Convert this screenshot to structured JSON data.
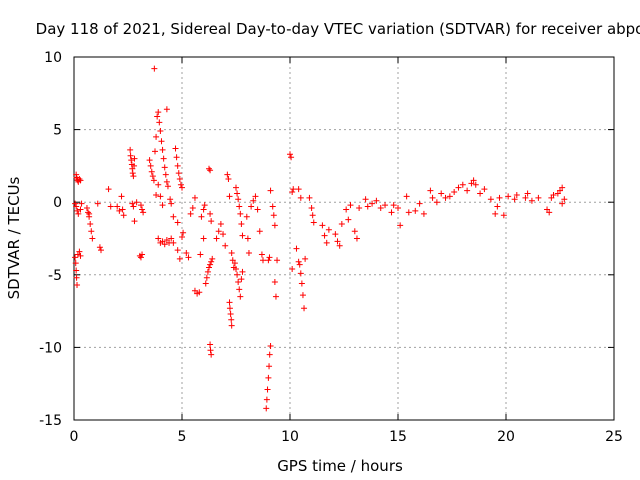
{
  "chart_data": {
    "type": "scatter",
    "title": "Day 118 of 2021, Sidereal Day-to-day VTEC variation (SDTVAR) for receiver abpo",
    "xlabel": "GPS time / hours",
    "ylabel": "SDTVAR / TECUs",
    "xlim": [
      0,
      25
    ],
    "ylim": [
      -15,
      10
    ],
    "xticks": [
      0,
      5,
      10,
      15,
      20,
      25
    ],
    "yticks": [
      -15,
      -10,
      -5,
      0,
      5,
      10
    ],
    "xtick_labels": [
      "0",
      "5",
      "10",
      "15",
      "20",
      "25"
    ],
    "ytick_labels": [
      "-15",
      "-10",
      "-5",
      "0",
      "5",
      "10"
    ],
    "grid": true,
    "marker": "plus",
    "color": "#ff0000",
    "series": [
      {
        "name": "SDTVAR",
        "points": [
          [
            0.1,
            1.9
          ],
          [
            0.12,
            1.7
          ],
          [
            0.14,
            1.6
          ],
          [
            0.17,
            1.5
          ],
          [
            0.2,
            1.4
          ],
          [
            0.25,
            1.6
          ],
          [
            0.3,
            1.5
          ],
          [
            0.05,
            -0.1
          ],
          [
            0.1,
            -0.3
          ],
          [
            0.15,
            -0.6
          ],
          [
            0.2,
            -0.8
          ],
          [
            0.3,
            -0.5
          ],
          [
            0.35,
            -0.1
          ],
          [
            0.05,
            -3.8
          ],
          [
            0.08,
            -4.2
          ],
          [
            0.1,
            -4.7
          ],
          [
            0.12,
            -5.2
          ],
          [
            0.14,
            -5.7
          ],
          [
            0.18,
            -3.6
          ],
          [
            0.25,
            -3.4
          ],
          [
            0.3,
            -3.7
          ],
          [
            0.6,
            -0.4
          ],
          [
            0.65,
            -0.7
          ],
          [
            0.7,
            -1.0
          ],
          [
            0.75,
            -1.5
          ],
          [
            0.8,
            -2.0
          ],
          [
            0.85,
            -2.5
          ],
          [
            0.7,
            -0.8
          ],
          [
            1.1,
            -0.1
          ],
          [
            1.2,
            -3.1
          ],
          [
            1.25,
            -3.3
          ],
          [
            1.6,
            0.9
          ],
          [
            1.7,
            -0.3
          ],
          [
            2.0,
            -0.3
          ],
          [
            2.1,
            -0.6
          ],
          [
            2.2,
            0.4
          ],
          [
            2.25,
            -0.5
          ],
          [
            2.3,
            -0.9
          ],
          [
            2.6,
            3.6
          ],
          [
            2.62,
            3.2
          ],
          [
            2.65,
            2.9
          ],
          [
            2.68,
            2.6
          ],
          [
            2.7,
            2.3
          ],
          [
            2.72,
            2.0
          ],
          [
            2.75,
            1.8
          ],
          [
            2.78,
            2.5
          ],
          [
            2.8,
            3.0
          ],
          [
            2.7,
            -0.1
          ],
          [
            2.75,
            -0.3
          ],
          [
            2.8,
            -1.3
          ],
          [
            2.9,
            0.0
          ],
          [
            3.1,
            -0.2
          ],
          [
            3.15,
            -0.5
          ],
          [
            3.2,
            -0.7
          ],
          [
            3.05,
            -3.7
          ],
          [
            3.1,
            -3.8
          ],
          [
            3.15,
            -3.6
          ],
          [
            3.5,
            2.9
          ],
          [
            3.55,
            2.5
          ],
          [
            3.6,
            2.1
          ],
          [
            3.65,
            1.8
          ],
          [
            3.7,
            1.5
          ],
          [
            3.75,
            3.5
          ],
          [
            3.8,
            4.5
          ],
          [
            3.85,
            5.9
          ],
          [
            3.9,
            6.2
          ],
          [
            3.95,
            5.5
          ],
          [
            4.0,
            4.9
          ],
          [
            4.05,
            4.2
          ],
          [
            4.1,
            3.6
          ],
          [
            4.15,
            3.0
          ],
          [
            4.2,
            2.4
          ],
          [
            4.25,
            1.9
          ],
          [
            4.3,
            1.4
          ],
          [
            4.35,
            1.1
          ],
          [
            3.8,
            0.5
          ],
          [
            3.9,
            1.2
          ],
          [
            4.0,
            0.4
          ],
          [
            4.1,
            -0.2
          ],
          [
            3.72,
            9.2
          ],
          [
            4.3,
            6.4
          ],
          [
            4.45,
            0.2
          ],
          [
            4.5,
            -0.1
          ],
          [
            3.9,
            -2.5
          ],
          [
            4.0,
            -2.8
          ],
          [
            4.1,
            -2.7
          ],
          [
            4.2,
            -2.9
          ],
          [
            4.3,
            -2.6
          ],
          [
            4.4,
            -2.8
          ],
          [
            4.7,
            3.7
          ],
          [
            4.75,
            3.1
          ],
          [
            4.8,
            2.5
          ],
          [
            4.85,
            2.0
          ],
          [
            4.9,
            1.6
          ],
          [
            4.95,
            1.2
          ],
          [
            5.0,
            1.0
          ],
          [
            4.6,
            -1.0
          ],
          [
            4.8,
            -1.4
          ],
          [
            4.5,
            -2.5
          ],
          [
            4.6,
            -2.8
          ],
          [
            4.8,
            -3.3
          ],
          [
            4.9,
            -3.9
          ],
          [
            5.0,
            -2.4
          ],
          [
            5.05,
            -2.1
          ],
          [
            5.2,
            -3.5
          ],
          [
            5.3,
            -3.8
          ],
          [
            5.4,
            -0.8
          ],
          [
            5.5,
            -0.4
          ],
          [
            5.6,
            0.3
          ],
          [
            5.6,
            -6.1
          ],
          [
            5.7,
            -6.3
          ],
          [
            5.8,
            -6.2
          ],
          [
            5.9,
            -1.0
          ],
          [
            6.0,
            -0.5
          ],
          [
            6.05,
            -0.2
          ],
          [
            6.0,
            -2.5
          ],
          [
            5.85,
            -3.6
          ],
          [
            6.1,
            -5.6
          ],
          [
            6.15,
            -5.2
          ],
          [
            6.2,
            -4.8
          ],
          [
            6.25,
            -4.5
          ],
          [
            6.3,
            -4.3
          ],
          [
            6.35,
            -4.1
          ],
          [
            6.4,
            -3.9
          ],
          [
            6.25,
            2.3
          ],
          [
            6.3,
            2.2
          ],
          [
            6.3,
            -0.8
          ],
          [
            6.35,
            -1.3
          ],
          [
            6.3,
            -9.8
          ],
          [
            6.32,
            -10.2
          ],
          [
            6.35,
            -10.5
          ],
          [
            6.6,
            -2.5
          ],
          [
            6.7,
            -2.0
          ],
          [
            6.8,
            -1.5
          ],
          [
            6.9,
            -2.2
          ],
          [
            7.0,
            -3.0
          ],
          [
            7.1,
            1.9
          ],
          [
            7.15,
            1.6
          ],
          [
            7.2,
            0.4
          ],
          [
            7.2,
            -6.9
          ],
          [
            7.22,
            -7.3
          ],
          [
            7.25,
            -7.7
          ],
          [
            7.28,
            -8.1
          ],
          [
            7.3,
            -8.5
          ],
          [
            7.3,
            -3.5
          ],
          [
            7.35,
            -4.0
          ],
          [
            7.4,
            -4.5
          ],
          [
            7.5,
            1.0
          ],
          [
            7.55,
            0.6
          ],
          [
            7.6,
            0.2
          ],
          [
            7.65,
            -0.3
          ],
          [
            7.7,
            -0.8
          ],
          [
            7.75,
            -1.5
          ],
          [
            7.8,
            -2.3
          ],
          [
            7.45,
            -4.2
          ],
          [
            7.5,
            -4.6
          ],
          [
            7.55,
            -5.0
          ],
          [
            7.6,
            -5.5
          ],
          [
            7.65,
            -6.0
          ],
          [
            7.7,
            -6.5
          ],
          [
            7.75,
            -5.3
          ],
          [
            7.8,
            -4.8
          ],
          [
            8.0,
            -1.0
          ],
          [
            8.05,
            -2.5
          ],
          [
            8.1,
            -3.5
          ],
          [
            8.2,
            -0.3
          ],
          [
            8.3,
            0.1
          ],
          [
            8.4,
            0.4
          ],
          [
            8.5,
            -0.5
          ],
          [
            8.6,
            -2.0
          ],
          [
            8.7,
            -3.6
          ],
          [
            8.75,
            -4.0
          ],
          [
            9.0,
            -4.0
          ],
          [
            9.05,
            -3.8
          ],
          [
            9.1,
            0.8
          ],
          [
            9.2,
            -0.3
          ],
          [
            9.25,
            -0.9
          ],
          [
            9.3,
            -1.6
          ],
          [
            8.9,
            -14.2
          ],
          [
            8.93,
            -13.6
          ],
          [
            8.96,
            -12.9
          ],
          [
            9.0,
            -12.1
          ],
          [
            9.03,
            -11.3
          ],
          [
            9.06,
            -10.5
          ],
          [
            9.1,
            -9.9
          ],
          [
            9.3,
            -5.5
          ],
          [
            9.35,
            -6.5
          ],
          [
            9.4,
            -4.0
          ],
          [
            10.0,
            3.3
          ],
          [
            10.05,
            3.1
          ],
          [
            10.1,
            0.7
          ],
          [
            10.15,
            0.9
          ],
          [
            10.4,
            0.9
          ],
          [
            10.5,
            0.3
          ],
          [
            10.3,
            -3.2
          ],
          [
            10.4,
            -4.1
          ],
          [
            10.1,
            -4.6
          ],
          [
            10.45,
            -4.3
          ],
          [
            10.5,
            -4.9
          ],
          [
            10.55,
            -5.6
          ],
          [
            10.6,
            -6.4
          ],
          [
            10.65,
            -7.3
          ],
          [
            10.7,
            -3.9
          ],
          [
            10.9,
            0.3
          ],
          [
            11.0,
            -0.4
          ],
          [
            11.05,
            -0.9
          ],
          [
            11.1,
            -1.4
          ],
          [
            11.5,
            -1.6
          ],
          [
            11.6,
            -2.3
          ],
          [
            11.7,
            -2.8
          ],
          [
            11.8,
            -1.9
          ],
          [
            12.1,
            -2.2
          ],
          [
            12.2,
            -2.7
          ],
          [
            12.3,
            -3.0
          ],
          [
            12.4,
            -1.5
          ],
          [
            12.6,
            -0.5
          ],
          [
            12.7,
            -1.2
          ],
          [
            12.8,
            -0.2
          ],
          [
            13.0,
            -2.0
          ],
          [
            13.1,
            -2.5
          ],
          [
            13.2,
            -0.4
          ],
          [
            13.5,
            0.2
          ],
          [
            13.6,
            -0.3
          ],
          [
            13.8,
            -0.1
          ],
          [
            14.0,
            0.1
          ],
          [
            14.2,
            -0.4
          ],
          [
            14.4,
            -0.2
          ],
          [
            14.7,
            -0.7
          ],
          [
            14.8,
            -0.2
          ],
          [
            15.0,
            -0.4
          ],
          [
            15.1,
            -1.6
          ],
          [
            15.4,
            0.4
          ],
          [
            15.5,
            -0.7
          ],
          [
            15.8,
            -0.6
          ],
          [
            16.0,
            -0.1
          ],
          [
            16.2,
            -0.8
          ],
          [
            16.5,
            0.8
          ],
          [
            16.6,
            0.3
          ],
          [
            16.8,
            0.0
          ],
          [
            17.0,
            0.6
          ],
          [
            17.2,
            0.3
          ],
          [
            17.4,
            0.4
          ],
          [
            17.6,
            0.7
          ],
          [
            17.8,
            1.0
          ],
          [
            18.0,
            1.2
          ],
          [
            18.2,
            0.8
          ],
          [
            18.4,
            1.3
          ],
          [
            18.5,
            1.5
          ],
          [
            18.6,
            1.2
          ],
          [
            18.8,
            0.6
          ],
          [
            19.0,
            0.9
          ],
          [
            19.3,
            0.2
          ],
          [
            19.5,
            -0.8
          ],
          [
            19.6,
            -0.3
          ],
          [
            19.7,
            0.3
          ],
          [
            19.9,
            -0.9
          ],
          [
            20.1,
            0.4
          ],
          [
            20.4,
            0.2
          ],
          [
            20.5,
            0.5
          ],
          [
            20.9,
            0.3
          ],
          [
            21.0,
            0.6
          ],
          [
            21.2,
            0.1
          ],
          [
            21.5,
            0.3
          ],
          [
            21.9,
            -0.5
          ],
          [
            22.0,
            -0.7
          ],
          [
            22.1,
            0.3
          ],
          [
            22.2,
            0.5
          ],
          [
            22.4,
            0.6
          ],
          [
            22.5,
            0.8
          ],
          [
            22.6,
            1.0
          ],
          [
            22.7,
            0.2
          ],
          [
            22.6,
            -0.1
          ]
        ]
      }
    ]
  }
}
